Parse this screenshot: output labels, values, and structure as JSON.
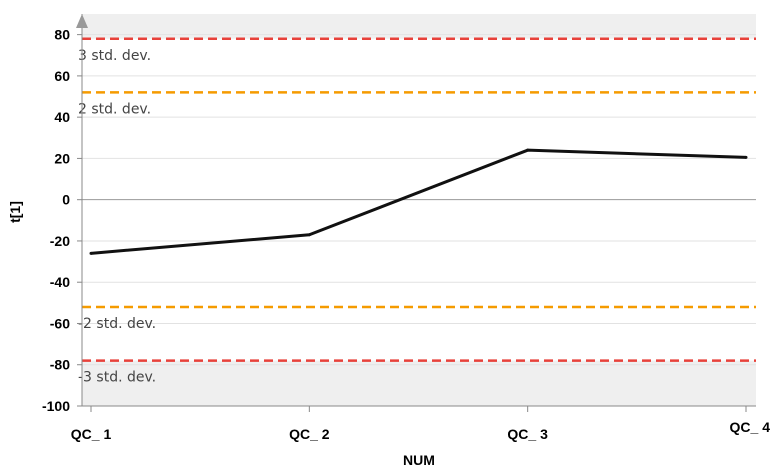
{
  "chart_data": {
    "type": "line",
    "xlabel": "NUM",
    "ylabel": "t[1]",
    "categories": [
      "QC_ 1",
      "QC_ 2",
      "QC_ 3",
      "QC_ 4"
    ],
    "series": [
      {
        "values": [
          -26,
          -17,
          24,
          20.5
        ],
        "color": "#111111"
      }
    ],
    "ylim": [
      -100,
      90
    ],
    "yticks": [
      -100,
      -80,
      -60,
      -40,
      -20,
      0,
      20,
      40,
      60,
      80
    ],
    "reference_lines": [
      {
        "y": 78,
        "label": "3 std. dev.",
        "color": "#e8413a",
        "style": "dashed"
      },
      {
        "y": 52,
        "label": "2 std. dev.",
        "color": "#f59b00",
        "style": "dashed"
      },
      {
        "y": -52,
        "label": "-2 std. dev.",
        "color": "#f59b00",
        "style": "dashed"
      },
      {
        "y": -78,
        "label": "-3 std. dev.",
        "color": "#e8413a",
        "style": "dashed"
      }
    ],
    "shaded_regions": [
      {
        "from": 78,
        "to": 90,
        "color": "#efefef"
      },
      {
        "from": -100,
        "to": -78,
        "color": "#efefef"
      }
    ],
    "zero_line": true,
    "grid": true,
    "plot_background": "#f5f5f5"
  }
}
